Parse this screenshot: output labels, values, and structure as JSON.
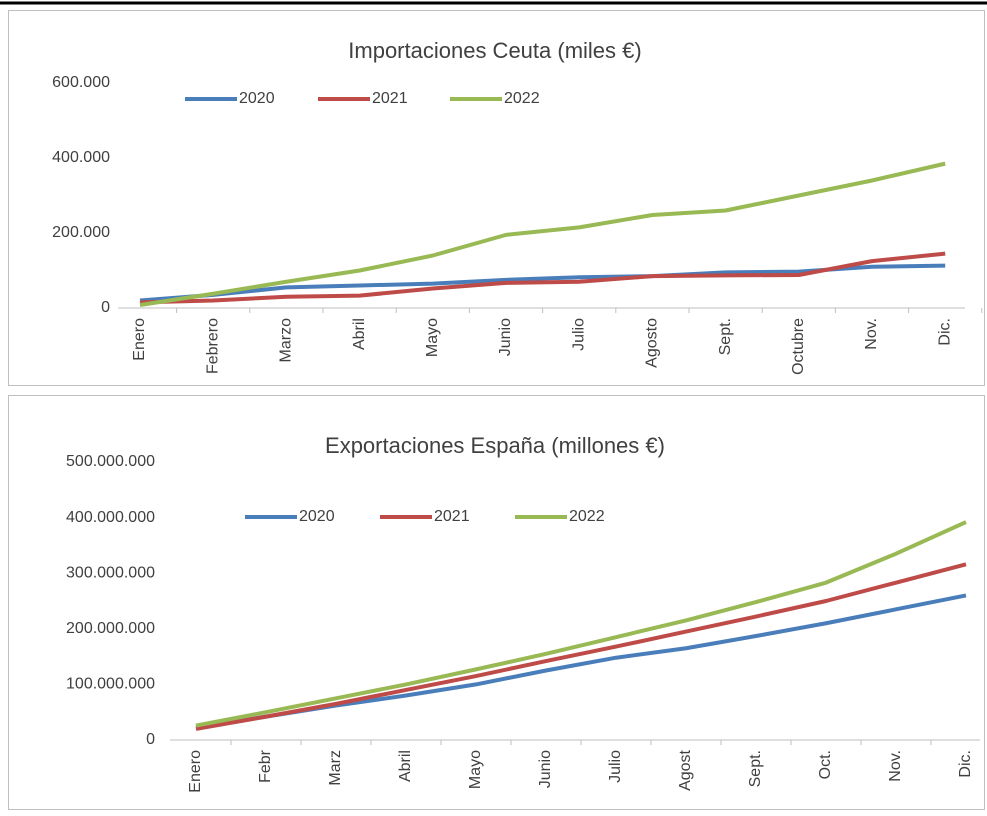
{
  "chart_data": [
    {
      "type": "line",
      "title": "Importaciones Ceuta (miles €)",
      "categories": [
        "Enero",
        "Febrero",
        "Marzo",
        "Abril",
        "Mayo",
        "Junio",
        "Julio",
        "Agosto",
        "Sept.",
        "Octubre",
        "Nov.",
        "Dic."
      ],
      "series": [
        {
          "name": "2020",
          "color": "#4a7ebb",
          "values": [
            20000,
            35000,
            55000,
            60000,
            65000,
            75000,
            82000,
            85000,
            95000,
            97000,
            110000,
            113000
          ]
        },
        {
          "name": "2021",
          "color": "#be4b48",
          "values": [
            15000,
            20000,
            30000,
            33000,
            52000,
            67000,
            70000,
            85000,
            87000,
            88000,
            125000,
            145000
          ]
        },
        {
          "name": "2022",
          "color": "#98b954",
          "values": [
            8000,
            38000,
            70000,
            100000,
            140000,
            195000,
            215000,
            248000,
            260000,
            300000,
            340000,
            385000
          ]
        }
      ],
      "ylim": [
        0,
        600000
      ],
      "yticks": [
        0,
        {
          "value": 200000,
          "label": "200.000"
        },
        {
          "value": 400000,
          "label": "400.000"
        },
        {
          "value": 600000,
          "label": "600.000"
        }
      ],
      "legend": "top"
    },
    {
      "type": "line",
      "title": "Exportaciones España (millones €)",
      "categories": [
        "Enero",
        "Febr",
        "Marz",
        "Abril",
        "Mayo",
        "Junio",
        "Julio",
        "Agost",
        "Sept.",
        "Oct.",
        "Nov.",
        "Dic."
      ],
      "series": [
        {
          "name": "2020",
          "color": "#4a7ebb",
          "values": [
            22000000,
            42000000,
            62000000,
            80000000,
            100000000,
            125000000,
            148000000,
            165000000,
            187000000,
            210000000,
            235000000,
            260000000
          ]
        },
        {
          "name": "2021",
          "color": "#be4b48",
          "values": [
            20000000,
            42000000,
            65000000,
            90000000,
            115000000,
            142000000,
            168000000,
            195000000,
            222000000,
            250000000,
            283000000,
            316000000
          ]
        },
        {
          "name": "2022",
          "color": "#98b954",
          "values": [
            26000000,
            50000000,
            75000000,
            100000000,
            127000000,
            155000000,
            185000000,
            215000000,
            248000000,
            283000000,
            335000000,
            392000000
          ]
        }
      ],
      "ylim": [
        0,
        500000000
      ],
      "yticks": [
        0,
        {
          "value": 100000000,
          "label": "100.000.000"
        },
        {
          "value": 200000000,
          "label": "200.000.000"
        },
        {
          "value": 300000000,
          "label": "300.000.000"
        },
        {
          "value": 400000000,
          "label": "400.000.000"
        },
        {
          "value": 500000000,
          "label": "500.000.000"
        }
      ],
      "legend": "top"
    }
  ]
}
